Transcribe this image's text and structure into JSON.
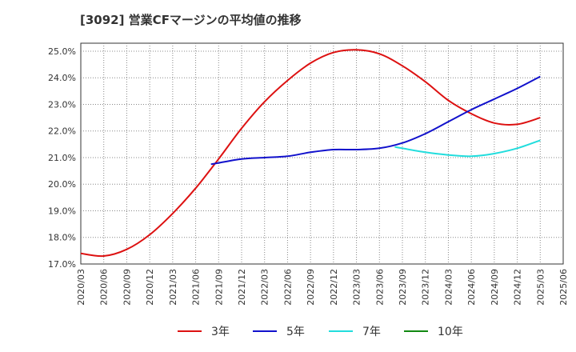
{
  "chart_data": {
    "type": "line",
    "title": "[3092]  営業CFマージンの平均値の推移",
    "x_categories": [
      "2020/03",
      "2020/06",
      "2020/09",
      "2020/12",
      "2021/03",
      "2021/06",
      "2021/09",
      "2021/12",
      "2022/03",
      "2022/06",
      "2022/09",
      "2022/12",
      "2023/03",
      "2023/06",
      "2023/09",
      "2023/12",
      "2024/03",
      "2024/06",
      "2024/09",
      "2024/12",
      "2025/03",
      "2025/06"
    ],
    "y_tick_labels": [
      "17.0%",
      "18.0%",
      "19.0%",
      "20.0%",
      "21.0%",
      "22.0%",
      "23.0%",
      "24.0%",
      "25.0%"
    ],
    "ylim": [
      17.0,
      25.3
    ],
    "grid": true,
    "legend_position": "bottom",
    "series": [
      {
        "name": "3年",
        "color": "#dd1111",
        "points": [
          [
            "2020/03",
            17.4
          ],
          [
            "2020/06",
            17.3
          ],
          [
            "2020/09",
            17.55
          ],
          [
            "2020/12",
            18.1
          ],
          [
            "2021/03",
            18.9
          ],
          [
            "2021/06",
            19.85
          ],
          [
            "2021/09",
            20.95
          ],
          [
            "2021/12",
            22.1
          ],
          [
            "2022/03",
            23.1
          ],
          [
            "2022/06",
            23.9
          ],
          [
            "2022/09",
            24.55
          ],
          [
            "2022/12",
            24.95
          ],
          [
            "2023/03",
            25.05
          ],
          [
            "2023/06",
            24.9
          ],
          [
            "2023/09",
            24.45
          ],
          [
            "2023/12",
            23.85
          ],
          [
            "2024/03",
            23.15
          ],
          [
            "2024/06",
            22.65
          ],
          [
            "2024/09",
            22.3
          ],
          [
            "2024/12",
            22.25
          ],
          [
            "2025/03",
            22.5
          ]
        ]
      },
      {
        "name": "5年",
        "color": "#1111cc",
        "points": [
          [
            "2021/08",
            20.75
          ],
          [
            "2021/09",
            20.8
          ],
          [
            "2021/12",
            20.95
          ],
          [
            "2022/03",
            21.0
          ],
          [
            "2022/06",
            21.05
          ],
          [
            "2022/09",
            21.2
          ],
          [
            "2022/12",
            21.3
          ],
          [
            "2023/03",
            21.3
          ],
          [
            "2023/06",
            21.35
          ],
          [
            "2023/09",
            21.55
          ],
          [
            "2023/12",
            21.9
          ],
          [
            "2024/03",
            22.35
          ],
          [
            "2024/06",
            22.8
          ],
          [
            "2024/09",
            23.2
          ],
          [
            "2024/12",
            23.6
          ],
          [
            "2025/03",
            24.05
          ]
        ]
      },
      {
        "name": "7年",
        "color": "#22dddd",
        "points": [
          [
            "2023/08",
            21.4
          ],
          [
            "2023/09",
            21.35
          ],
          [
            "2023/12",
            21.2
          ],
          [
            "2024/03",
            21.1
          ],
          [
            "2024/06",
            21.05
          ],
          [
            "2024/09",
            21.15
          ],
          [
            "2024/12",
            21.35
          ],
          [
            "2025/03",
            21.65
          ]
        ]
      },
      {
        "name": "10年",
        "color": "#118811",
        "points": []
      }
    ]
  }
}
